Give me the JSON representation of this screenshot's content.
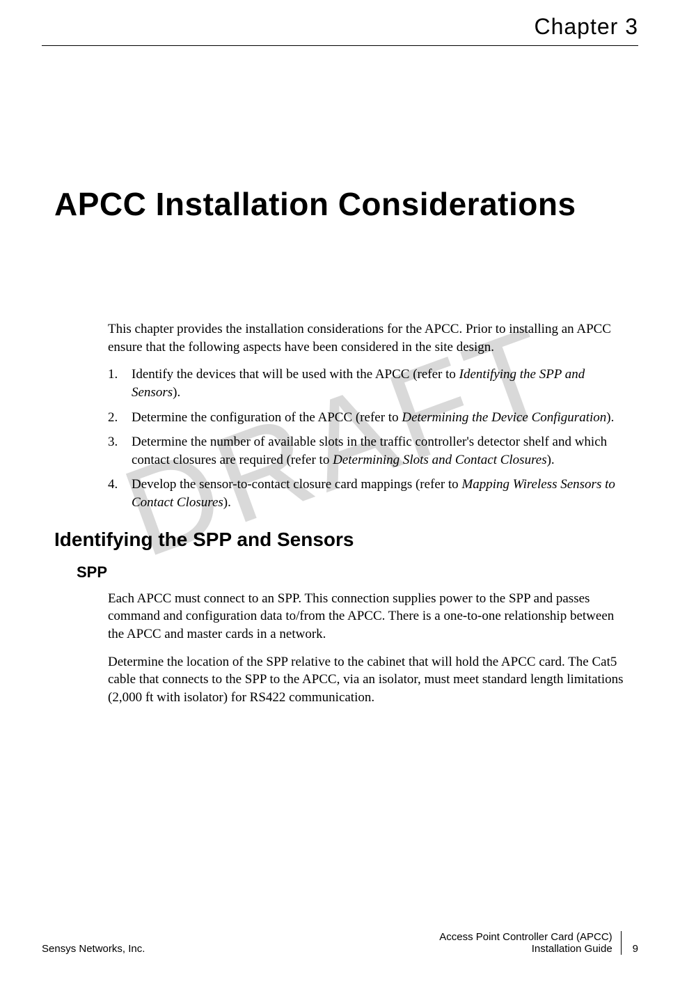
{
  "watermark": "DRAFT",
  "chapter_label": "Chapter 3",
  "main_title": "APCC Installation Considerations",
  "intro_paragraph": "This chapter provides the installation considerations for the APCC. Prior to installing an APCC ensure that the following aspects have been considered in the site design.",
  "list_items": [
    {
      "text_before": "Identify the devices that will be used with the APCC (refer to ",
      "ref": "Identifying the SPP and Sensors",
      "text_after": ")."
    },
    {
      "text_before": "Determine the configuration of the APCC (refer to ",
      "ref": "Determining the Device Configuration",
      "text_after": ")."
    },
    {
      "text_before": "Determine the number of available slots in the traffic controller's detector shelf and which contact closures are required (refer to ",
      "ref": "Determining Slots and Contact Closures",
      "text_after": ")."
    },
    {
      "text_before": "Develop the sensor-to-contact closure card mappings (refer to ",
      "ref": "Mapping Wireless Sensors to Contact Closures",
      "text_after": ")."
    }
  ],
  "section_heading": "Identifying the SPP and Sensors",
  "subsection_heading": "SPP",
  "spp_para_1": "Each APCC must connect to an SPP. This connection supplies power to the SPP and passes command and configuration data to/from the APCC. There is a one-to-one relationship between the APCC and master cards in a network.",
  "spp_para_2": "Determine the location of the SPP relative to the cabinet that will hold the APCC card. The Cat5 cable that connects to the SPP to the APCC, via an isolator, must meet standard length limitations (2,000 ft with isolator) for RS422 communication.",
  "footer": {
    "company": "Sensys Networks, Inc.",
    "doc_line1": "Access Point Controller Card (APCC)",
    "doc_line2": "Installation Guide",
    "page_number": "9"
  },
  "colors": {
    "text": "#000000",
    "watermark": "#d9d9d9",
    "background": "#ffffff"
  },
  "fonts": {
    "heading_family": "Century Gothic, Futura, Arial, sans-serif",
    "body_family": "Georgia, Times New Roman, serif",
    "main_title_size": 46,
    "chapter_label_size": 32,
    "section_heading_size": 28,
    "subsection_heading_size": 22,
    "body_size": 19,
    "footer_size": 15,
    "watermark_size": 180
  }
}
